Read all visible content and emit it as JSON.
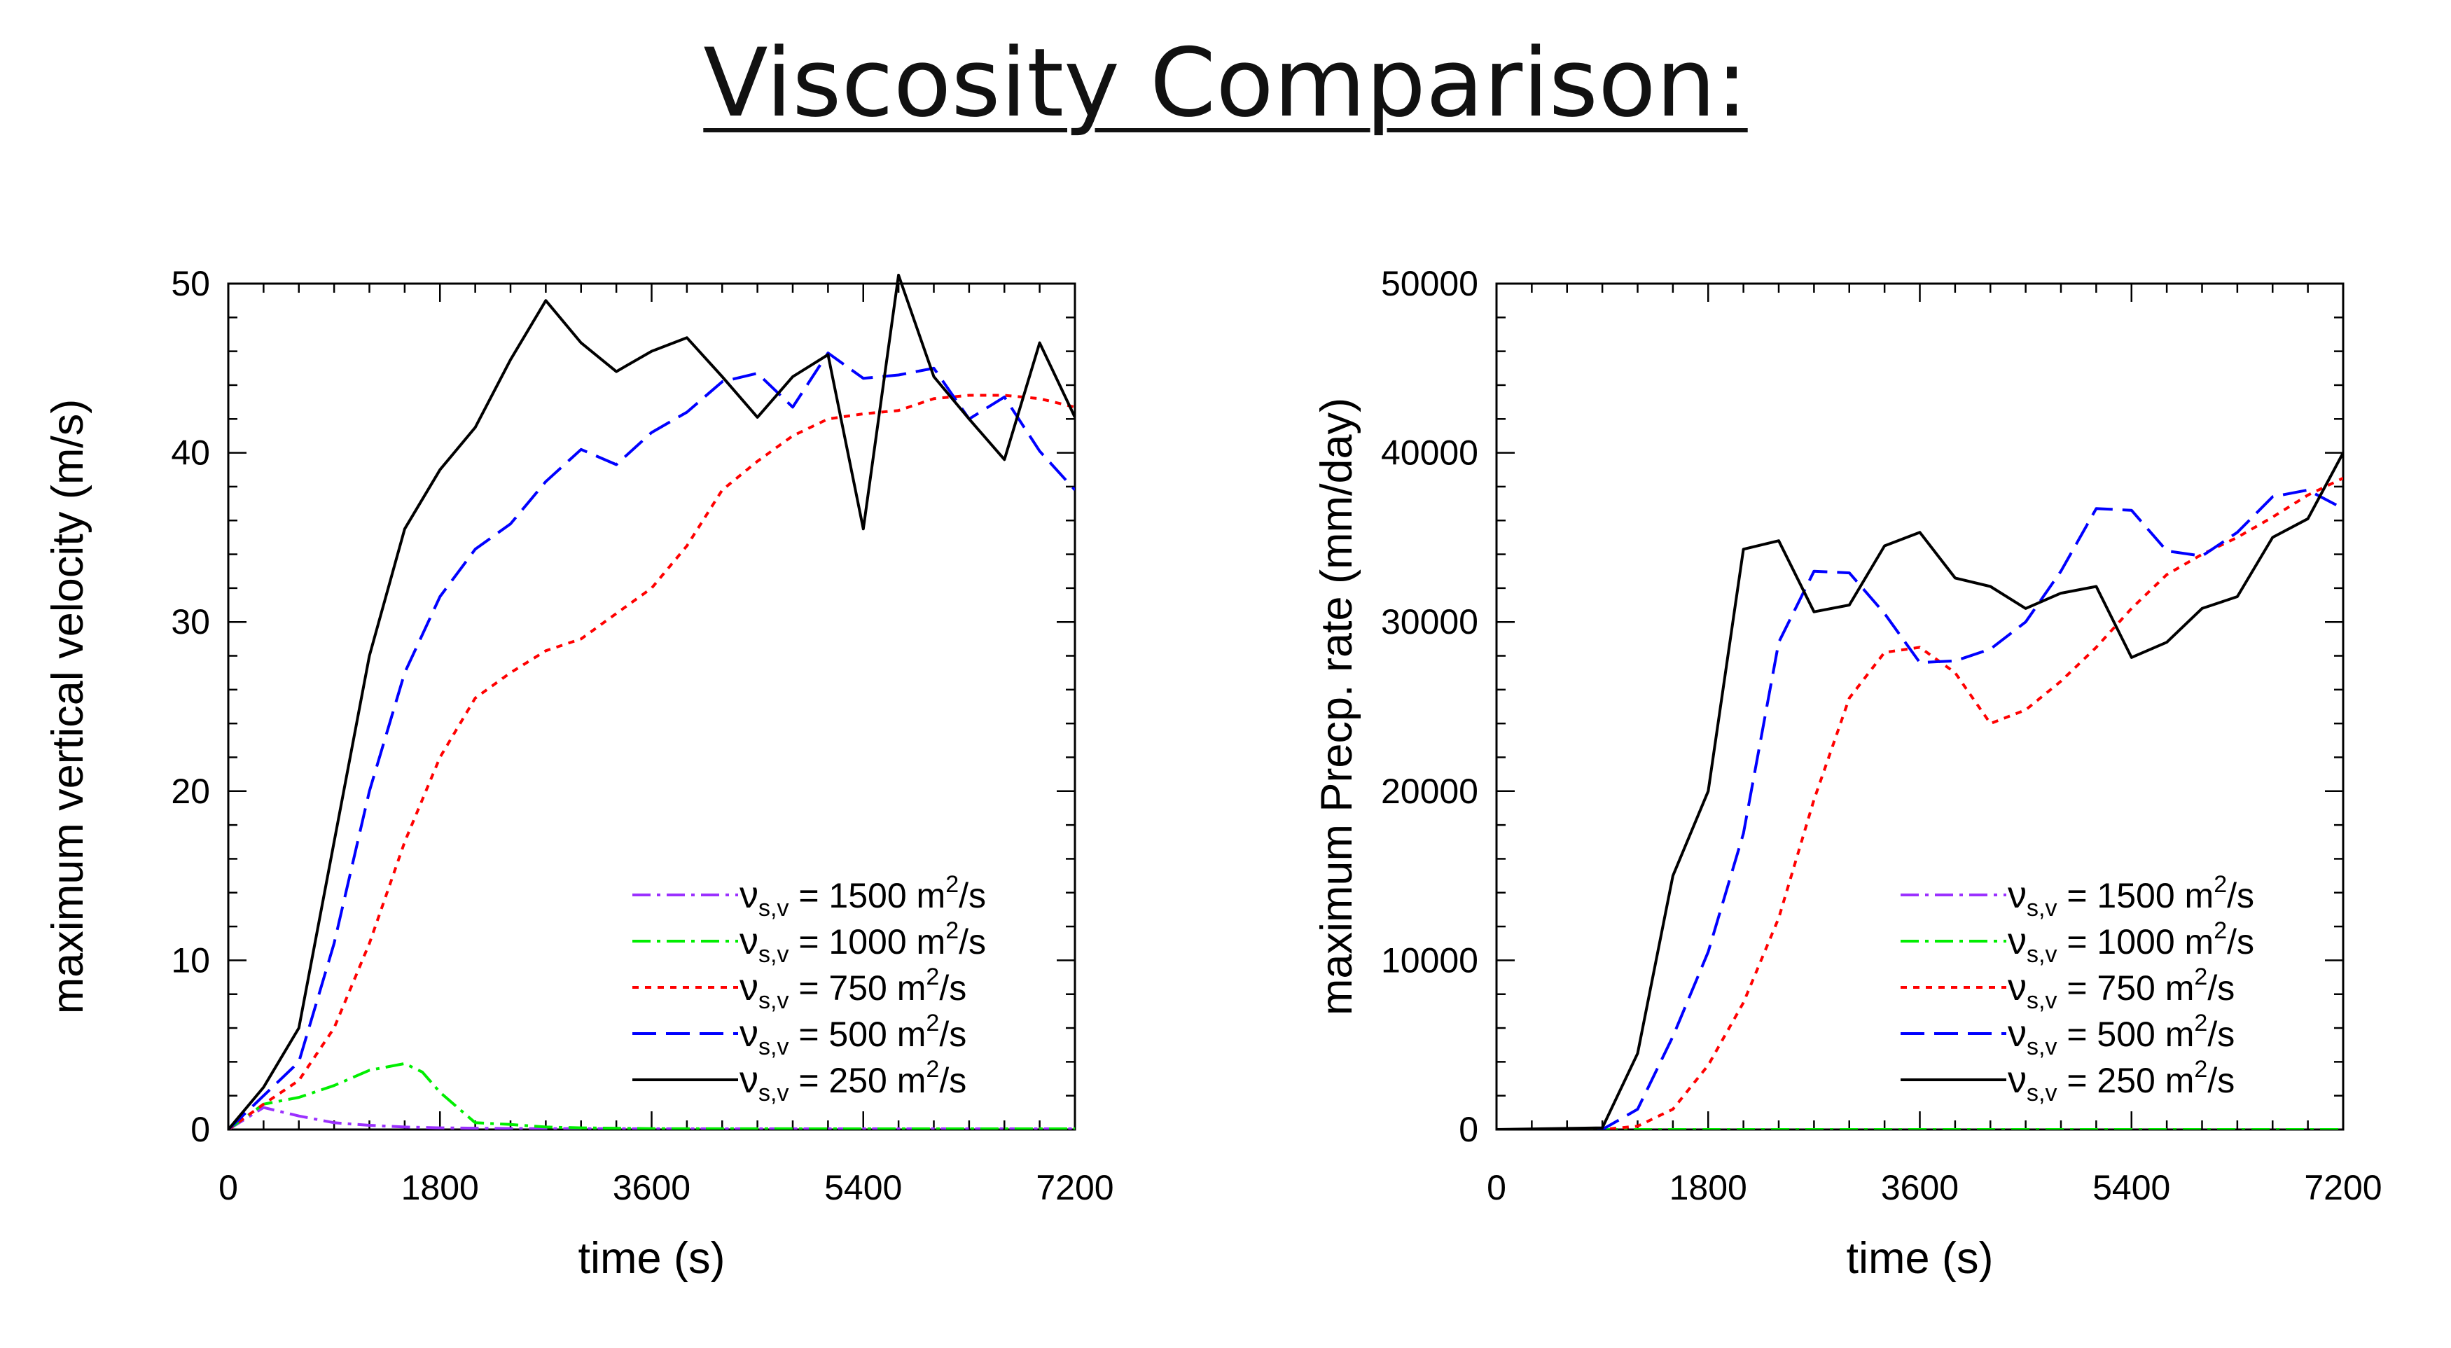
{
  "title": "Viscosity Comparison:",
  "chart_data": [
    {
      "type": "line",
      "xlabel": "time (s)",
      "ylabel": "maximum vertical velocity (m/s)",
      "xlim": [
        0,
        7200
      ],
      "ylim": [
        0,
        50
      ],
      "xticks": [
        "0",
        "1800",
        "3600",
        "5400",
        "7200"
      ],
      "yticks": [
        "0",
        "10",
        "20",
        "30",
        "40",
        "50"
      ],
      "legend_position": "bottom-right",
      "series": [
        {
          "name": "1500 m²/s",
          "legend": {
            "pre": "ν",
            "sub": "s,v",
            "mid": " = 1500 m",
            "sup": "2",
            "post": "/s"
          },
          "color": "#9b30ff",
          "style": "dash-dot",
          "x": [
            0,
            300,
            600,
            900,
            1200,
            1500,
            1800,
            2100,
            2400,
            2700,
            3000,
            3600,
            4500,
            5400,
            6300,
            7200
          ],
          "y": [
            0,
            1.3,
            0.8,
            0.4,
            0.25,
            0.15,
            0.1,
            0.08,
            0.06,
            0.05,
            0.05,
            0.04,
            0.04,
            0.04,
            0.04,
            0.04
          ]
        },
        {
          "name": "1000 m²/s",
          "legend": {
            "pre": "ν",
            "sub": "s,v",
            "mid": " = 1000 m",
            "sup": "2",
            "post": "/s"
          },
          "color": "#00ee00",
          "style": "dash-dot",
          "x": [
            0,
            300,
            600,
            900,
            1200,
            1500,
            1650,
            1800,
            2100,
            2400,
            2700,
            3000,
            3600,
            5400,
            7200
          ],
          "y": [
            0,
            1.5,
            1.9,
            2.6,
            3.5,
            3.9,
            3.4,
            2.2,
            0.4,
            0.3,
            0.15,
            0.1,
            0.05,
            0.04,
            0.04
          ]
        },
        {
          "name": "750 m²/s",
          "legend": {
            "pre": "ν",
            "sub": "s,v",
            "mid": " = 750 m",
            "sup": "2",
            "post": "/s"
          },
          "color": "#ff0000",
          "style": "dot",
          "x": [
            0,
            300,
            600,
            900,
            1200,
            1500,
            1800,
            2100,
            2400,
            2700,
            3000,
            3300,
            3600,
            3900,
            4200,
            4500,
            4800,
            5100,
            5400,
            5700,
            6000,
            6300,
            6600,
            6900,
            7200
          ],
          "y": [
            0,
            1.5,
            2.9,
            6.0,
            11.0,
            17.0,
            22.0,
            25.5,
            27.0,
            28.3,
            29.0,
            30.5,
            32.0,
            34.5,
            37.8,
            39.5,
            41.0,
            42.0,
            42.3,
            42.5,
            43.2,
            43.4,
            43.4,
            43.2,
            42.7
          ]
        },
        {
          "name": "500 m²/s",
          "legend": {
            "pre": "ν",
            "sub": "s,v",
            "mid": " = 500 m",
            "sup": "2",
            "post": "/s"
          },
          "color": "#0000ff",
          "style": "dash",
          "x": [
            0,
            300,
            600,
            900,
            1200,
            1500,
            1800,
            2100,
            2400,
            2700,
            3000,
            3300,
            3600,
            3900,
            4200,
            4500,
            4800,
            5100,
            5400,
            5700,
            6000,
            6300,
            6600,
            6900,
            7200
          ],
          "y": [
            0,
            2.0,
            4.0,
            11.0,
            20.0,
            27.0,
            31.5,
            34.3,
            35.8,
            38.3,
            40.2,
            39.3,
            41.2,
            42.4,
            44.2,
            44.7,
            42.7,
            45.9,
            44.4,
            44.6,
            45.0,
            42.0,
            43.3,
            40.1,
            37.8
          ]
        },
        {
          "name": "250 m²/s",
          "legend": {
            "pre": "ν",
            "sub": "s,v",
            "mid": " = 250 m",
            "sup": "2",
            "post": "/s"
          },
          "color": "#000000",
          "style": "solid",
          "x": [
            0,
            300,
            600,
            900,
            1200,
            1500,
            1800,
            2100,
            2400,
            2700,
            3000,
            3300,
            3600,
            3900,
            4200,
            4500,
            4800,
            5100,
            5400,
            5700,
            6000,
            6300,
            6600,
            6900,
            7200
          ],
          "y": [
            0,
            2.5,
            6.0,
            17.0,
            28.0,
            35.5,
            39.0,
            41.5,
            45.5,
            49.0,
            46.5,
            44.8,
            46.0,
            46.8,
            44.5,
            42.1,
            44.5,
            45.8,
            35.5,
            50.5,
            44.5,
            42.0,
            39.6,
            46.5,
            42.1
          ]
        }
      ]
    },
    {
      "type": "line",
      "xlabel": "time (s)",
      "ylabel": "maximum Precp. rate (mm/day)",
      "xlim": [
        0,
        7200
      ],
      "ylim": [
        0,
        50000
      ],
      "xticks": [
        "0",
        "1800",
        "3600",
        "5400",
        "7200"
      ],
      "yticks": [
        "0",
        "10000",
        "20000",
        "30000",
        "40000",
        "50000"
      ],
      "legend_position": "bottom-right",
      "series": [
        {
          "name": "1500 m²/s",
          "legend": {
            "pre": "ν",
            "sub": "s,v",
            "mid": " = 1500 m",
            "sup": "2",
            "post": "/s"
          },
          "color": "#9b30ff",
          "style": "dash-dot",
          "x": [
            0,
            1800,
            3600,
            5400,
            7200
          ],
          "y": [
            0,
            0,
            0,
            0,
            0
          ]
        },
        {
          "name": "1000 m²/s",
          "legend": {
            "pre": "ν",
            "sub": "s,v",
            "mid": " = 1000 m",
            "sup": "2",
            "post": "/s"
          },
          "color": "#00ee00",
          "style": "dash-dot",
          "x": [
            0,
            1800,
            3600,
            5400,
            7200
          ],
          "y": [
            0,
            0,
            0,
            0,
            0
          ]
        },
        {
          "name": "750 m²/s",
          "legend": {
            "pre": "ν",
            "sub": "s,v",
            "mid": " = 750 m",
            "sup": "2",
            "post": "/s"
          },
          "color": "#ff0000",
          "style": "dot",
          "x": [
            0,
            900,
            1200,
            1500,
            1800,
            2100,
            2400,
            2700,
            3000,
            3300,
            3600,
            3900,
            4200,
            4500,
            4800,
            5100,
            5400,
            5700,
            6000,
            6300,
            6600,
            6900,
            7200
          ],
          "y": [
            0,
            0,
            200,
            1200,
            3800,
            7500,
            12500,
            19500,
            25500,
            28200,
            28500,
            27000,
            24000,
            24800,
            26500,
            28500,
            30800,
            32800,
            34000,
            35000,
            36200,
            37500,
            38500
          ]
        },
        {
          "name": "500 m²/s",
          "legend": {
            "pre": "ν",
            "sub": "s,v",
            "mid": " = 500 m",
            "sup": "2",
            "post": "/s"
          },
          "color": "#0000ff",
          "style": "dash",
          "x": [
            0,
            900,
            1200,
            1500,
            1800,
            2100,
            2400,
            2700,
            3000,
            3300,
            3600,
            3900,
            4200,
            4500,
            4800,
            5100,
            5400,
            5700,
            6000,
            6300,
            6600,
            6900,
            7200
          ],
          "y": [
            0,
            0,
            1200,
            5500,
            10500,
            17500,
            28800,
            33000,
            32900,
            30500,
            27600,
            27700,
            28400,
            30000,
            33000,
            36700,
            36600,
            34200,
            33900,
            35300,
            37400,
            37800,
            36700
          ]
        },
        {
          "name": "250 m²/s",
          "legend": {
            "pre": "ν",
            "sub": "s,v",
            "mid": " = 250 m",
            "sup": "2",
            "post": "/s"
          },
          "color": "#000000",
          "style": "solid",
          "x": [
            0,
            900,
            1200,
            1500,
            1800,
            2100,
            2400,
            2700,
            3000,
            3300,
            3600,
            3900,
            4200,
            4500,
            4800,
            5100,
            5400,
            5700,
            6000,
            6300,
            6600,
            6900,
            7200
          ],
          "y": [
            0,
            100,
            4500,
            15000,
            20000,
            34300,
            34800,
            30600,
            31000,
            34500,
            35300,
            32600,
            32100,
            30800,
            31700,
            32100,
            27900,
            28800,
            30800,
            31500,
            35000,
            36100,
            40000
          ]
        }
      ]
    }
  ]
}
